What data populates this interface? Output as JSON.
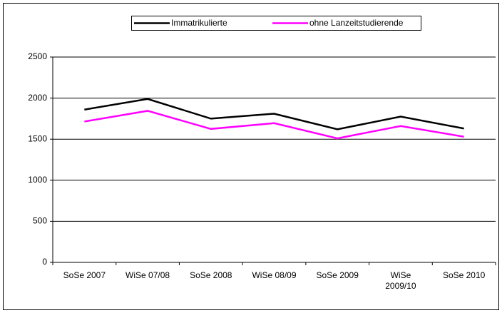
{
  "chart_data": {
    "type": "line",
    "categories": [
      "SoSe 2007",
      "WiSe 07/08",
      "SoSe 2008",
      "WiSe 08/09",
      "SoSe 2009",
      "WiSe 2009/10",
      "SoSe 2010"
    ],
    "series": [
      {
        "name": "Immatrikulierte",
        "color": "#000000",
        "values": [
          1860,
          1990,
          1750,
          1810,
          1620,
          1775,
          1630
        ]
      },
      {
        "name": "ohne Lanzeitstudierende",
        "color": "#ff00ff",
        "values": [
          1715,
          1845,
          1625,
          1695,
          1510,
          1660,
          1530
        ]
      }
    ],
    "ylim": [
      0,
      2500
    ],
    "yticks": [
      0,
      500,
      1000,
      1500,
      2000,
      2500
    ],
    "grid": true,
    "legend": "top"
  }
}
